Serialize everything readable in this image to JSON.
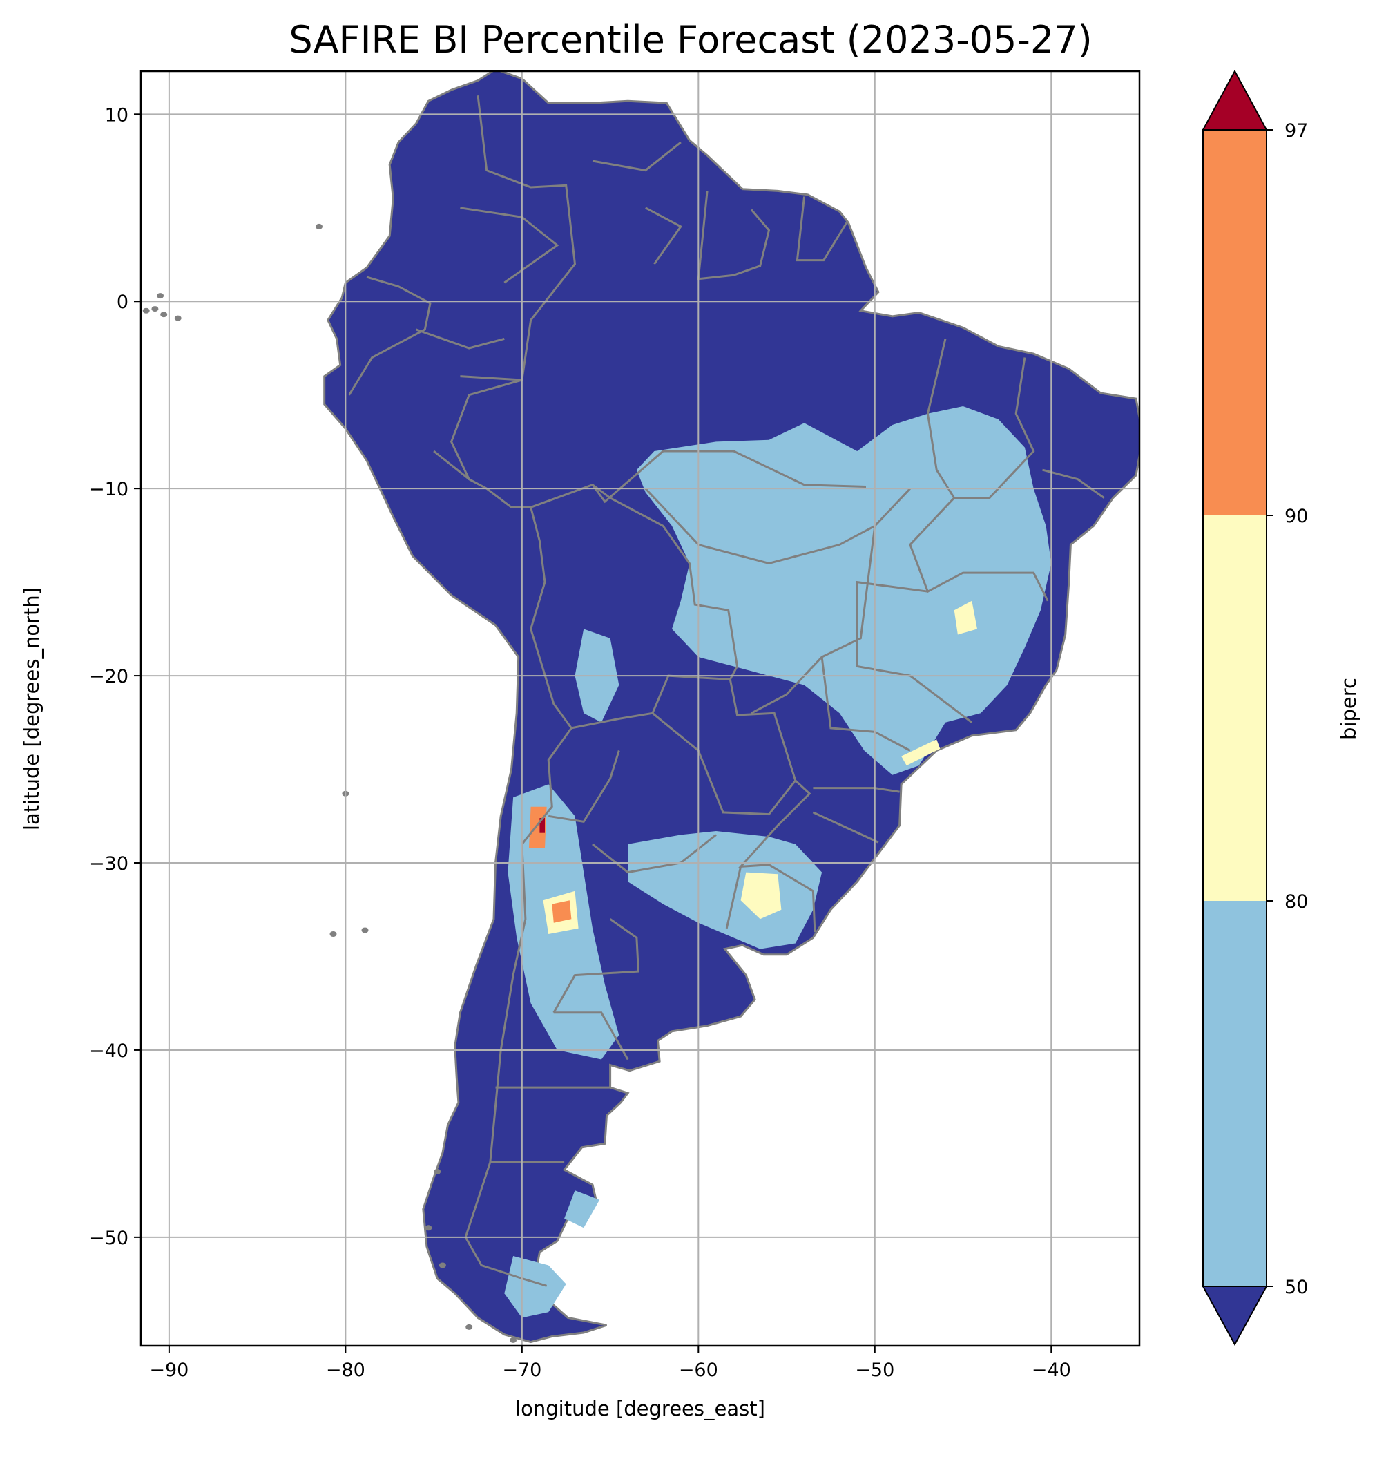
{
  "map": {
    "title": "SAFIRE BI Percentile Forecast (2023-05-27)",
    "xlabel": "longitude [degrees_east]",
    "ylabel": "latitude [degrees_north]",
    "xlim": [
      -91.6,
      -35.0
    ],
    "ylim": [
      -55.8,
      12.3
    ],
    "xticks": [
      -90,
      -80,
      -70,
      -60,
      -50,
      -40
    ],
    "yticks": [
      10,
      0,
      -10,
      -20,
      -30,
      -40,
      -50
    ],
    "xtick_labels": [
      "−90",
      "−80",
      "−70",
      "−60",
      "−50",
      "−40"
    ],
    "ytick_labels": [
      "10",
      "0",
      "−10",
      "−20",
      "−30",
      "−40",
      "−50"
    ],
    "grid": true,
    "border_color": "#808080",
    "land_color": "#313695"
  },
  "colorbar": {
    "label": "biperc",
    "boundaries": [
      50,
      80,
      90,
      97
    ],
    "tick_labels": [
      "97",
      "90",
      "80",
      "50"
    ],
    "colors": {
      "under": "#313695",
      "b50_80": "#8fc3de",
      "b80_90": "#fefbc0",
      "b90_97": "#f88d51",
      "over": "#a50026"
    },
    "extend": "both"
  },
  "regions": {
    "light_blue": [
      {
        "name": "central-brazil",
        "lonlat": [
          [
            -62.5,
            -8.0
          ],
          [
            -59,
            -7.5
          ],
          [
            -56,
            -7.4
          ],
          [
            -54,
            -6.5
          ],
          [
            -51,
            -8.0
          ],
          [
            -49,
            -6.6
          ],
          [
            -47,
            -6.0
          ],
          [
            -45,
            -5.6
          ],
          [
            -43,
            -6.3
          ],
          [
            -41.5,
            -7.8
          ],
          [
            -41,
            -10
          ],
          [
            -40.3,
            -12
          ],
          [
            -40,
            -14
          ],
          [
            -40.6,
            -16.5
          ],
          [
            -41.5,
            -18.5
          ],
          [
            -42.5,
            -20.5
          ],
          [
            -44,
            -22
          ],
          [
            -46,
            -22.5
          ],
          [
            -47.5,
            -24.8
          ],
          [
            -49,
            -25.3
          ],
          [
            -50.6,
            -24.0
          ],
          [
            -52,
            -22.0
          ],
          [
            -54,
            -20.5
          ],
          [
            -56,
            -20.0
          ],
          [
            -58,
            -19.5
          ],
          [
            -60,
            -19.0
          ],
          [
            -61.5,
            -17.5
          ],
          [
            -61,
            -16
          ],
          [
            -60.5,
            -14
          ],
          [
            -61.5,
            -12
          ],
          [
            -63,
            -10.2
          ],
          [
            -63.5,
            -9.0
          ]
        ]
      },
      {
        "name": "pampa-uruguay",
        "lonlat": [
          [
            -64,
            -29.0
          ],
          [
            -61,
            -28.5
          ],
          [
            -59,
            -28.3
          ],
          [
            -56,
            -28.6
          ],
          [
            -54.5,
            -29.0
          ],
          [
            -53,
            -30.5
          ],
          [
            -53.5,
            -32.5
          ],
          [
            -54.5,
            -34.3
          ],
          [
            -56.5,
            -34.6
          ],
          [
            -58,
            -34.0
          ],
          [
            -60,
            -33.2
          ],
          [
            -62,
            -32.2
          ],
          [
            -64,
            -31.0
          ]
        ]
      },
      {
        "name": "western-argentina",
        "lonlat": [
          [
            -70.5,
            -26.5
          ],
          [
            -68.5,
            -25.8
          ],
          [
            -67,
            -27.5
          ],
          [
            -66.5,
            -30.5
          ],
          [
            -66,
            -33.5
          ],
          [
            -65.3,
            -36.5
          ],
          [
            -64.5,
            -39.2
          ],
          [
            -65.5,
            -40.5
          ],
          [
            -68,
            -40.0
          ],
          [
            -69.5,
            -37.5
          ],
          [
            -70.3,
            -34.0
          ],
          [
            -70.8,
            -30.5
          ]
        ]
      },
      {
        "name": "puna",
        "lonlat": [
          [
            -66.5,
            -17.5
          ],
          [
            -65,
            -18.0
          ],
          [
            -64.5,
            -20.5
          ],
          [
            -65.5,
            -22.5
          ],
          [
            -66.5,
            -22.0
          ],
          [
            -67,
            -20.0
          ]
        ]
      },
      {
        "name": "patagonia-south",
        "lonlat": [
          [
            -70.5,
            -51.0
          ],
          [
            -68.5,
            -51.5
          ],
          [
            -67.5,
            -52.5
          ],
          [
            -68.5,
            -54.0
          ],
          [
            -70,
            -54.3
          ],
          [
            -71,
            -53.0
          ]
        ]
      },
      {
        "name": "patagonia-east",
        "lonlat": [
          [
            -67,
            -47.5
          ],
          [
            -65.6,
            -48.0
          ],
          [
            -66.5,
            -49.5
          ],
          [
            -67.6,
            -49.0
          ]
        ]
      }
    ],
    "yellow": [
      {
        "name": "uruguay-north",
        "lonlat": [
          [
            -57.3,
            -30.5
          ],
          [
            -55.5,
            -30.6
          ],
          [
            -55.3,
            -32.5
          ],
          [
            -56.5,
            -33.0
          ],
          [
            -57.6,
            -32.0
          ]
        ]
      },
      {
        "name": "minas-spots",
        "lonlat": [
          [
            -45.5,
            -16.5
          ],
          [
            -44.5,
            -16.0
          ],
          [
            -44.2,
            -17.5
          ],
          [
            -45.3,
            -17.8
          ]
        ]
      },
      {
        "name": "sao-paulo-coast",
        "lonlat": [
          [
            -48.5,
            -24.3
          ],
          [
            -46.5,
            -23.4
          ],
          [
            -46.3,
            -23.9
          ],
          [
            -48.2,
            -24.8
          ]
        ]
      },
      {
        "name": "cuyo",
        "lonlat": [
          [
            -68.8,
            -32.0
          ],
          [
            -67.0,
            -31.5
          ],
          [
            -66.8,
            -33.5
          ],
          [
            -68.5,
            -33.8
          ]
        ]
      }
    ],
    "orange": [
      {
        "name": "la-rioja",
        "lonlat": [
          [
            -69.5,
            -27.0
          ],
          [
            -68.6,
            -27.0
          ],
          [
            -68.7,
            -29.2
          ],
          [
            -69.6,
            -29.2
          ]
        ]
      },
      {
        "name": "mendoza-spot",
        "lonlat": [
          [
            -68.3,
            -32.2
          ],
          [
            -67.3,
            -32.0
          ],
          [
            -67.2,
            -33.0
          ],
          [
            -68.2,
            -33.2
          ]
        ]
      }
    ],
    "red": [
      {
        "name": "la-rioja-core",
        "lonlat": [
          [
            -69.0,
            -27.6
          ],
          [
            -68.7,
            -27.6
          ],
          [
            -68.7,
            -28.4
          ],
          [
            -69.0,
            -28.4
          ]
        ]
      }
    ]
  }
}
